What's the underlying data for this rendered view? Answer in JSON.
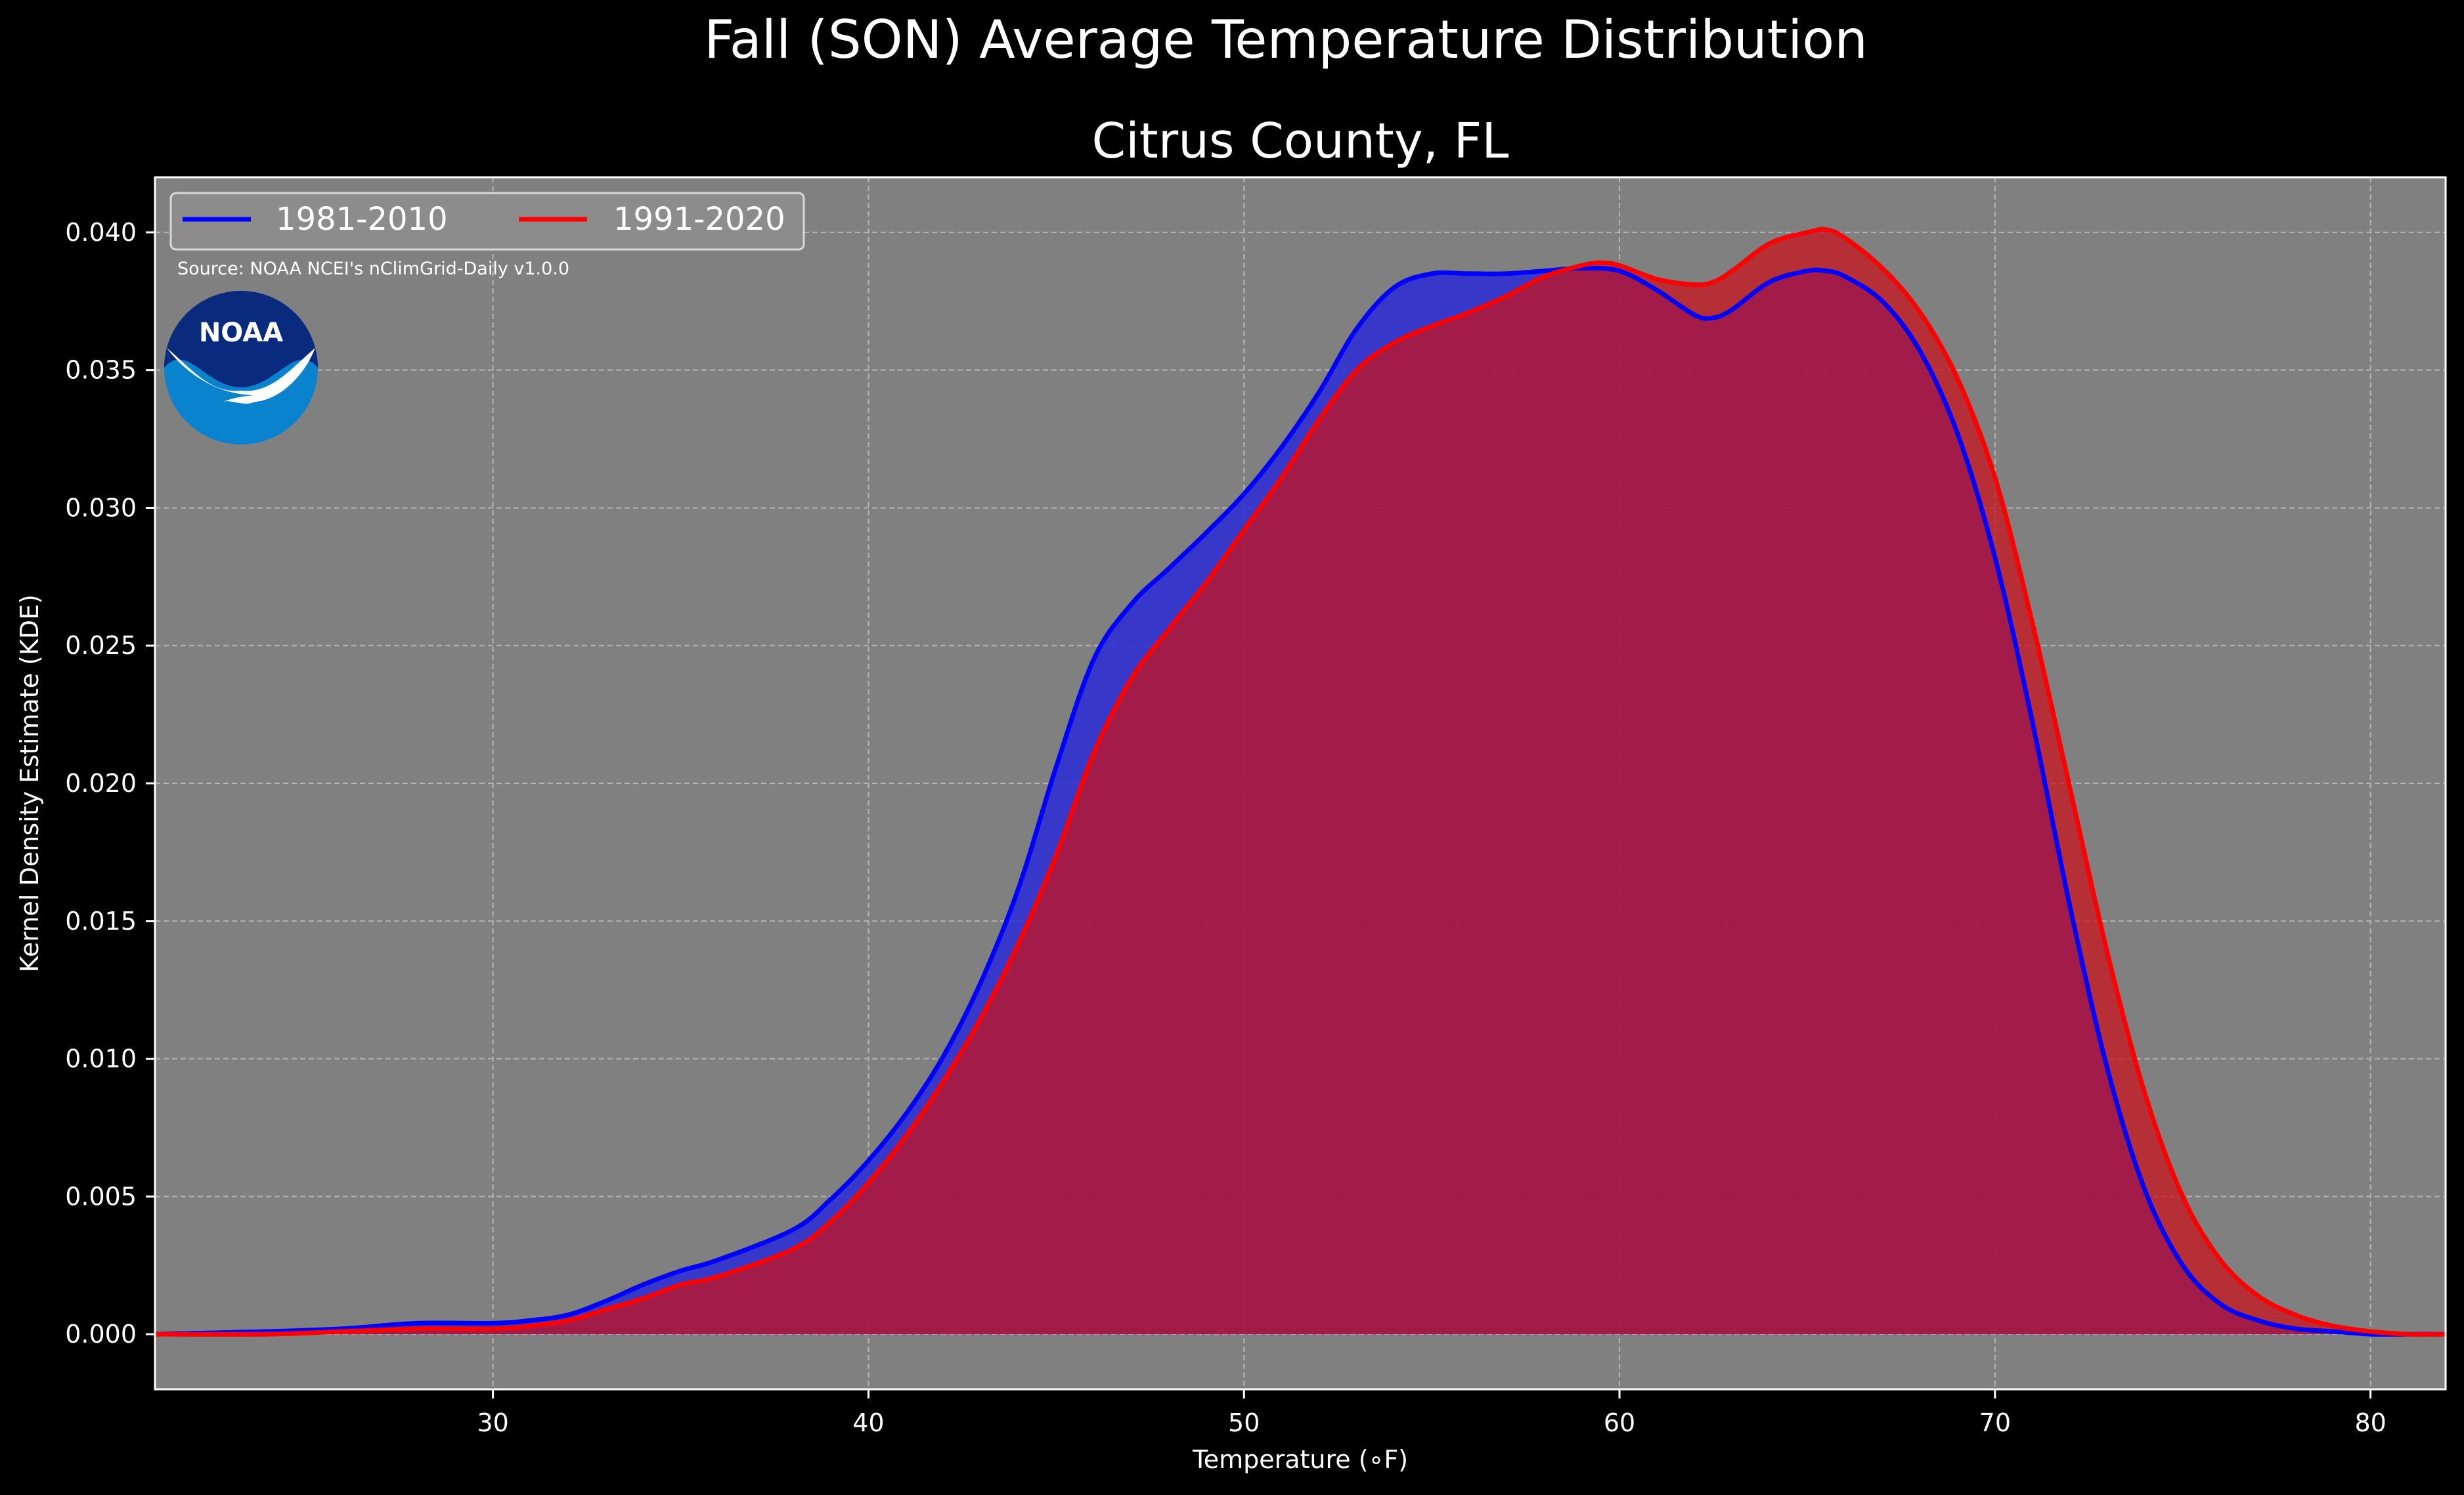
{
  "figure": {
    "suptitle": "Fall (SON) Average Temperature Distribution",
    "title": "Citrus County, FL",
    "source_note": "Source: NOAA NCEI's nClimGrid-Daily v1.0.0",
    "logo_text": "NOAA"
  },
  "colors": {
    "background": "#000000",
    "plot_bg": "#808080",
    "grid": "#b4b4b4",
    "series_1981": "#0000ff",
    "series_1991": "#ff0000",
    "fill_1981": "#2a2ad6",
    "fill_1991": "#c8141e",
    "noaa_dark": "#0a2a7e",
    "noaa_light": "#0a83cf"
  },
  "chart_data": {
    "type": "area",
    "title": "Citrus County, FL",
    "xlabel": "Temperature (∘F)",
    "ylabel": "Kernel Density Estimate (KDE)",
    "xlim": [
      21,
      82
    ],
    "ylim": [
      -0.002,
      0.042
    ],
    "xticks": [
      30,
      40,
      50,
      60,
      70,
      80
    ],
    "yticks": [
      0.0,
      0.005,
      0.01,
      0.015,
      0.02,
      0.025,
      0.03,
      0.035,
      0.04
    ],
    "ytick_labels": [
      "0.000",
      "0.005",
      "0.010",
      "0.015",
      "0.020",
      "0.025",
      "0.030",
      "0.035",
      "0.040"
    ],
    "grid": true,
    "legend_position": "top-left",
    "series": [
      {
        "name": "1981-2010",
        "color": "#0000ff",
        "x": [
          21,
          24,
          26,
          28,
          30,
          31,
          32,
          33,
          34,
          35,
          36,
          38,
          39,
          40,
          41,
          42,
          43,
          44,
          45,
          46,
          47,
          48,
          49,
          50,
          51,
          52,
          53,
          54,
          55,
          56,
          57,
          58,
          59,
          60,
          61,
          62,
          62.5,
          63,
          64,
          65,
          65.5,
          66,
          67,
          68,
          69,
          70,
          71,
          72,
          73,
          74,
          75,
          76,
          77,
          78,
          79,
          80,
          81,
          82
        ],
        "y": [
          0.0,
          0.0001,
          0.0002,
          0.0004,
          0.0004,
          0.0005,
          0.0007,
          0.0012,
          0.0018,
          0.0023,
          0.0027,
          0.0038,
          0.0049,
          0.0063,
          0.008,
          0.0101,
          0.0128,
          0.0162,
          0.0206,
          0.0245,
          0.0265,
          0.0278,
          0.0291,
          0.0305,
          0.0322,
          0.0342,
          0.0365,
          0.038,
          0.0385,
          0.0385,
          0.0385,
          0.0386,
          0.0387,
          0.0386,
          0.0379,
          0.037,
          0.0369,
          0.0372,
          0.0382,
          0.0386,
          0.0386,
          0.0384,
          0.0375,
          0.0357,
          0.0327,
          0.0282,
          0.0222,
          0.0155,
          0.0096,
          0.0052,
          0.0025,
          0.0011,
          0.0005,
          0.0002,
          0.0001,
          0.0,
          0.0,
          0.0
        ]
      },
      {
        "name": "1991-2020",
        "color": "#ff0000",
        "x": [
          21,
          24,
          26,
          28,
          30,
          31,
          32,
          33,
          34,
          35,
          36,
          38,
          39,
          40,
          41,
          42,
          43,
          44,
          45,
          46,
          47,
          48,
          49,
          50,
          51,
          52,
          53,
          54,
          55,
          56,
          57,
          58,
          59,
          59.5,
          60,
          61,
          62,
          62.5,
          63,
          64,
          65,
          65.5,
          66,
          67,
          68,
          69,
          70,
          71,
          72,
          73,
          74,
          75,
          76,
          77,
          78,
          79,
          80,
          81,
          82
        ],
        "y": [
          0.0,
          0.0,
          0.0001,
          0.0002,
          0.0002,
          0.0003,
          0.0005,
          0.0009,
          0.0013,
          0.0018,
          0.0021,
          0.0031,
          0.0041,
          0.0055,
          0.0072,
          0.0092,
          0.0115,
          0.0142,
          0.0174,
          0.0211,
          0.0238,
          0.0256,
          0.0273,
          0.0292,
          0.0311,
          0.0332,
          0.035,
          0.036,
          0.0366,
          0.0371,
          0.0377,
          0.0384,
          0.0388,
          0.0389,
          0.0388,
          0.0383,
          0.0381,
          0.0382,
          0.0386,
          0.0396,
          0.04,
          0.0401,
          0.0398,
          0.0387,
          0.0371,
          0.0347,
          0.0311,
          0.0258,
          0.0198,
          0.0138,
          0.0087,
          0.005,
          0.0027,
          0.0014,
          0.0007,
          0.0003,
          0.0001,
          0.0,
          0.0
        ]
      }
    ]
  }
}
